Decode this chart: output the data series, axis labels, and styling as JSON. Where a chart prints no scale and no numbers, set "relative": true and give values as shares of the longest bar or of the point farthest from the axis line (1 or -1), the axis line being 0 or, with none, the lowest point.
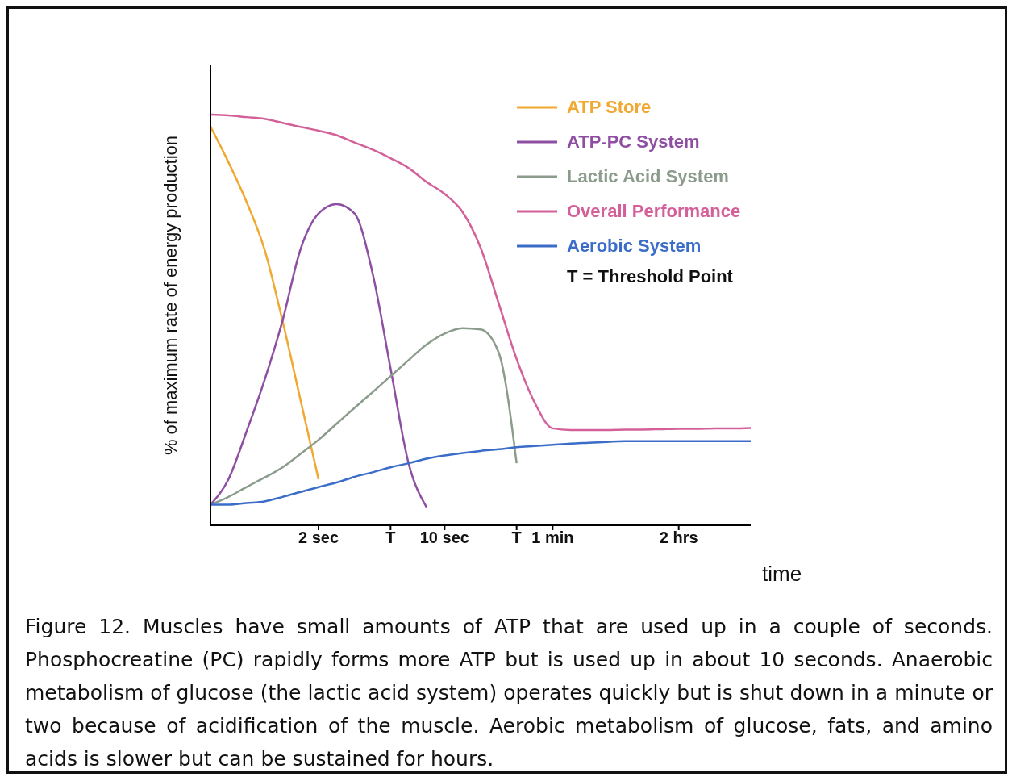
{
  "chart_data": {
    "type": "line",
    "relative": true,
    "ylabel": "% of maximum rate of energy production",
    "xlabel": "time",
    "categories": [
      null,
      null,
      null,
      null,
      null,
      null,
      "2 sec",
      null,
      null,
      null,
      "T",
      null,
      null,
      "10 sec",
      null,
      null,
      null,
      "T",
      null,
      "1 min",
      null,
      null,
      null,
      null,
      null,
      null,
      "2 hrs",
      null,
      null,
      null,
      null
    ],
    "series": [
      {
        "name": "ATP Store",
        "color": "#f0a830",
        "values": [
          0.971,
          0.884,
          0.788,
          0.672,
          0.498,
          0.305,
          0.112,
          null,
          null,
          null,
          null,
          null,
          null,
          null,
          null,
          null,
          null,
          null,
          null,
          null,
          null,
          null,
          null,
          null,
          null,
          null,
          null,
          null,
          null,
          null,
          null
        ]
      },
      {
        "name": "ATP-PC System",
        "color": "#8e4fa3",
        "values": [
          0.05,
          0.112,
          0.228,
          0.353,
          0.498,
          0.672,
          0.759,
          0.782,
          0.759,
          0.614,
          0.382,
          0.151,
          0.044,
          null,
          null,
          null,
          null,
          null,
          null,
          null,
          null,
          null,
          null,
          null,
          null,
          null,
          null,
          null,
          null,
          null,
          null
        ]
      },
      {
        "name": "Lactic Acid System",
        "color": "#8c9c8c",
        "values": [
          0.05,
          0.069,
          0.093,
          0.116,
          0.141,
          0.174,
          0.208,
          0.247,
          0.286,
          0.324,
          0.363,
          0.402,
          0.44,
          0.467,
          0.48,
          0.477,
          0.421,
          0.151,
          null,
          null,
          null,
          null,
          null,
          null,
          null,
          null,
          null,
          null,
          null,
          null,
          null
        ]
      },
      {
        "name": "Overall Performance",
        "color": "#d4609a",
        "values": [
          1.0,
          0.998,
          0.994,
          0.99,
          0.98,
          0.97,
          0.961,
          0.95,
          0.932,
          0.915,
          0.894,
          0.87,
          0.836,
          0.807,
          0.763,
          0.676,
          0.541,
          0.405,
          0.299,
          0.236,
          0.232,
          0.232,
          0.232,
          0.233,
          0.233,
          0.234,
          0.235,
          0.235,
          0.236,
          0.236,
          0.237
        ]
      },
      {
        "name": "Aerobic System",
        "color": "#3a6cc8",
        "values": [
          0.05,
          0.05,
          0.054,
          0.058,
          0.069,
          0.081,
          0.093,
          0.104,
          0.118,
          0.129,
          0.141,
          0.151,
          0.162,
          0.17,
          0.176,
          0.181,
          0.185,
          0.19,
          0.193,
          0.196,
          0.199,
          0.201,
          0.203,
          0.205,
          0.205,
          0.205,
          0.205,
          0.205,
          0.205,
          0.205,
          0.205
        ]
      }
    ],
    "legend": "top right",
    "marker": "none",
    "line_style": "solid",
    "grid": false,
    "annotations": [
      "T = Threshold Point",
      "Figure 12. Muscles have small amounts of ATP that are used up in a couple of seconds. Phosphocreatine (PC) rapidly forms more ATP but is used up in about 10 seconds. Anaerobic metabolism of glucose (the lactic acid system) operates quickly but is shut down in a minute or two because of acidification of the muscle. Aerobic metabolism of glucose, fats, and amino acids is slower but can be sustained for hours."
    ]
  }
}
